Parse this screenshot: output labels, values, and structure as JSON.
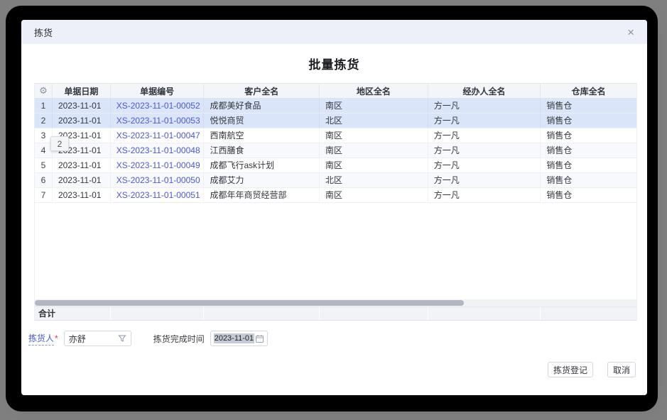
{
  "dialog": {
    "title": "拣货",
    "close_icon": "×",
    "heading": "批量拣货"
  },
  "table": {
    "columns": [
      "单据日期",
      "单据编号",
      "客户全名",
      "地区全名",
      "经办人全名",
      "仓库全名"
    ],
    "rows": [
      {
        "num": "1",
        "date": "2023-11-01",
        "doc_no": "XS-2023-11-01-00052",
        "customer": "成都美好食品",
        "region": "南区",
        "handler": "方一凡",
        "warehouse": "销售仓",
        "selected": true
      },
      {
        "num": "2",
        "date": "2023-11-01",
        "doc_no": "XS-2023-11-01-00053",
        "customer": "悦悦商贸",
        "region": "北区",
        "handler": "方一凡",
        "warehouse": "销售仓",
        "selected": true
      },
      {
        "num": "3",
        "date": "2023-11-01",
        "doc_no": "XS-2023-11-01-00047",
        "customer": "西南航空",
        "region": "南区",
        "handler": "方一凡",
        "warehouse": "销售仓",
        "selected": false
      },
      {
        "num": "4",
        "date": "2023-11-01",
        "doc_no": "XS-2023-11-01-00048",
        "customer": "江西膳食",
        "region": "南区",
        "handler": "方一凡",
        "warehouse": "销售仓",
        "selected": false
      },
      {
        "num": "5",
        "date": "2023-11-01",
        "doc_no": "XS-2023-11-01-00049",
        "customer": "成都飞行ask计划",
        "region": "南区",
        "handler": "方一凡",
        "warehouse": "销售仓",
        "selected": false
      },
      {
        "num": "6",
        "date": "2023-11-01",
        "doc_no": "XS-2023-11-01-00050",
        "customer": "成都艾力",
        "region": "北区",
        "handler": "方一凡",
        "warehouse": "销售仓",
        "selected": false
      },
      {
        "num": "7",
        "date": "2023-11-01",
        "doc_no": "XS-2023-11-01-00051",
        "customer": "成都年年商贸经营部",
        "region": "南区",
        "handler": "方一凡",
        "warehouse": "销售仓",
        "selected": false
      }
    ],
    "total_label": "合计",
    "drag_count_badge": "2",
    "gear_icon": "⚙"
  },
  "form": {
    "picker_label": "拣货人",
    "required_mark": "*",
    "picker_value": "亦舒",
    "time_label": "拣货完成时间",
    "time_value": "2023-11-01"
  },
  "footer": {
    "register_label": "拣货登记",
    "cancel_label": "取消"
  },
  "colors": {
    "accent_link": "#4b57d8",
    "selected_row": "#dbe5f9",
    "titlebar_bg": "#edf0f8",
    "required_red": "#e03a3a"
  }
}
